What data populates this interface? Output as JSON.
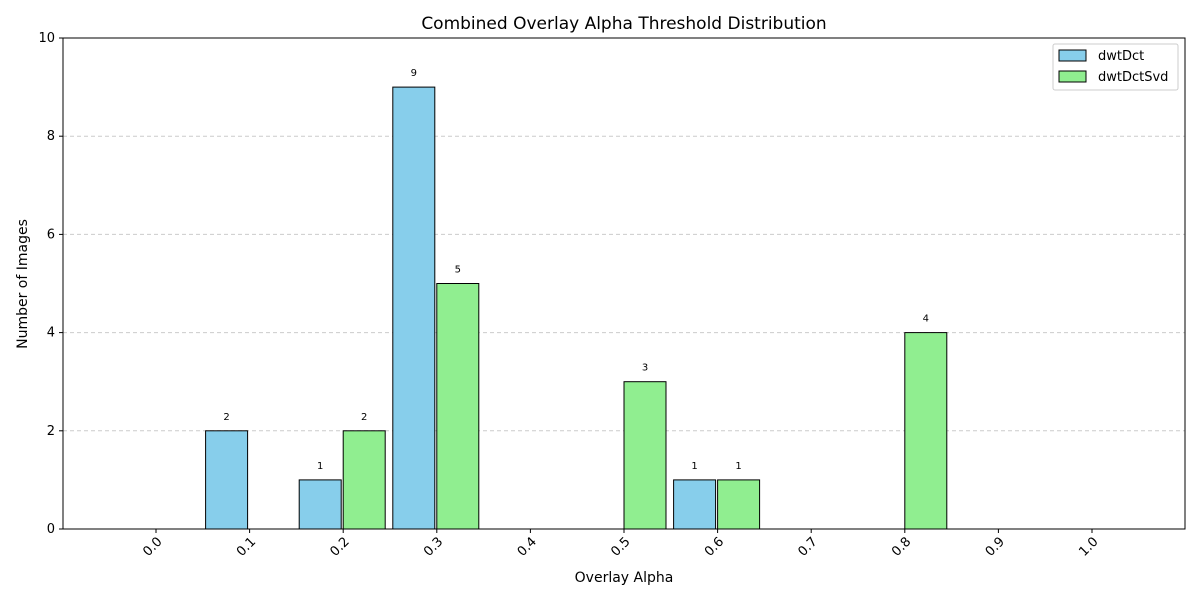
{
  "chart_data": {
    "type": "bar",
    "title": "Combined Overlay Alpha Threshold Distribution",
    "xlabel": "Overlay Alpha",
    "ylabel": "Number of Images",
    "categories": [
      "0.0",
      "0.1",
      "0.2",
      "0.3",
      "0.4",
      "0.5",
      "0.6",
      "0.7",
      "0.8",
      "0.9",
      "1.0"
    ],
    "series": [
      {
        "name": "dwtDct",
        "color": "#87CEEB",
        "values": [
          0,
          2,
          1,
          9,
          0,
          0,
          1,
          0,
          0,
          0,
          0
        ]
      },
      {
        "name": "dwtDctSvd",
        "color": "#90EE90",
        "values": [
          0,
          0,
          2,
          5,
          0,
          3,
          1,
          0,
          4,
          0,
          0
        ]
      }
    ],
    "ylim": [
      0,
      10
    ],
    "yticks": [
      "0",
      "2",
      "4",
      "6",
      "8",
      "10"
    ],
    "grid": "y-dashed",
    "legend": "top-right"
  }
}
